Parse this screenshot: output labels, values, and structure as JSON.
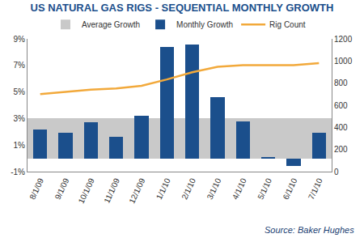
{
  "chart_data": {
    "type": "bar",
    "title": "US NATURAL GAS RIGS - SEQUENTIAL MONTHLY GROWTH",
    "annotations": [
      "Source: Baker Hughes"
    ],
    "categories": [
      "8/1/09",
      "9/1/09",
      "10/1/09",
      "11/1/09",
      "12/1/09",
      "1/1/10",
      "2/1/10",
      "3/1/10",
      "4/1/10",
      "5/1/10",
      "6/1/10",
      "7/1/10"
    ],
    "series": [
      {
        "name": "Average Growth",
        "type": "bar",
        "color": "#c9c9c9",
        "values": [
          3.0,
          3.0,
          3.0,
          3.0,
          3.0,
          3.0,
          3.0,
          3.0,
          3.0,
          3.0,
          3.0,
          3.0
        ]
      },
      {
        "name": "Monthly Growth",
        "type": "bar",
        "color": "#1b4f8c",
        "values": [
          2.2,
          1.9,
          2.7,
          1.6,
          3.2,
          8.4,
          8.6,
          4.6,
          2.8,
          0.1,
          -0.6,
          1.9
        ]
      },
      {
        "name": "Rig Count",
        "type": "line",
        "axis": "y2",
        "color": "#f2a93b",
        "values": [
          700,
          718,
          740,
          751,
          775,
          833,
          898,
          947,
          963,
          963,
          963,
          980
        ]
      }
    ],
    "ylim": [
      -1,
      9
    ],
    "yticks": [
      {
        "value": -1,
        "label": "-1%"
      },
      {
        "value": 1,
        "label": "1%"
      },
      {
        "value": 3,
        "label": "3%"
      },
      {
        "value": 5,
        "label": "5%"
      },
      {
        "value": 7,
        "label": "7%"
      },
      {
        "value": 9,
        "label": "9%"
      }
    ],
    "y2lim": [
      0,
      1200
    ],
    "y2ticks": [
      0,
      200,
      400,
      600,
      800,
      1000,
      1200
    ],
    "grid": false,
    "legend": "top"
  }
}
